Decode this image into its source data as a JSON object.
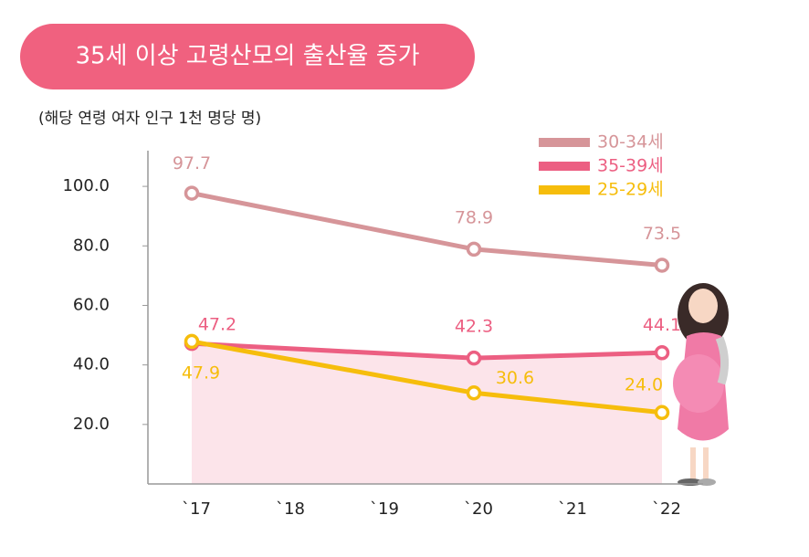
{
  "chart_data": {
    "type": "line",
    "title": "35세 이상 고령산모의 출산율 증가",
    "subtitle": "(해당 연령 여자 인구 1천 명당 명)",
    "xticks": [
      "`17",
      "`18",
      "`19",
      "`20",
      "`21",
      "`22"
    ],
    "x": [
      "`17",
      "`20",
      "`22"
    ],
    "ylim": [
      0,
      112
    ],
    "yticks": [
      {
        "value": 20,
        "label": "20.0"
      },
      {
        "value": 40,
        "label": "40.0"
      },
      {
        "value": 60,
        "label": "60.0"
      },
      {
        "value": 80,
        "label": "80.0"
      },
      {
        "value": 100,
        "label": "100.0"
      }
    ],
    "grid": false,
    "legend": "top-right",
    "series": [
      {
        "name": "30-34세",
        "color": "#d69599",
        "values": [
          97.7,
          78.9,
          73.5
        ],
        "value_labels": [
          "97.7",
          "78.9",
          "73.5"
        ]
      },
      {
        "name": "35-39세",
        "color": "#ec5f82",
        "values": [
          47.2,
          42.3,
          44.1
        ],
        "value_labels": [
          "47.2",
          "42.3",
          "44.1"
        ],
        "area": true,
        "area_color": "#fce4ea"
      },
      {
        "name": "25-29세",
        "color": "#f6bd0c",
        "values": [
          47.9,
          30.6,
          24.0
        ],
        "value_labels": [
          "47.9",
          "30.6",
          "24.0"
        ]
      }
    ]
  }
}
